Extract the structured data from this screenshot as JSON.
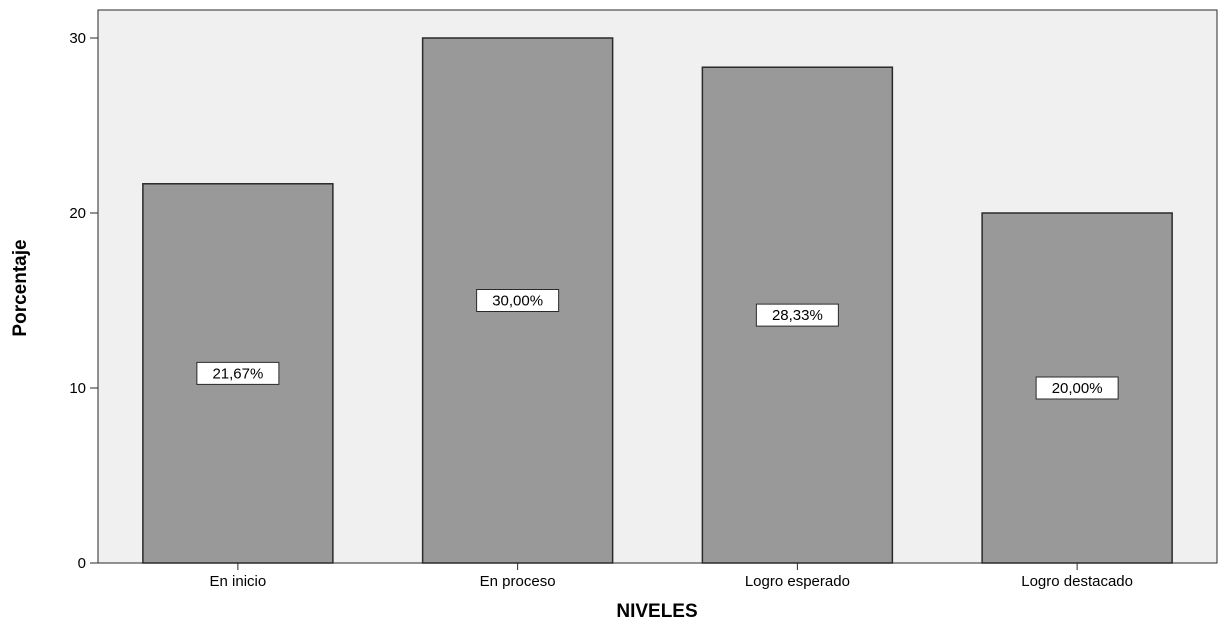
{
  "chart_data": {
    "type": "bar",
    "categories": [
      "En inicio",
      "En proceso",
      "Logro esperado",
      "Logro destacado"
    ],
    "values": [
      21.67,
      30.0,
      28.33,
      20.0
    ],
    "data_labels": [
      "21,67%",
      "30,00%",
      "28,33%",
      "20,00%"
    ],
    "xlabel": "NIVELES",
    "ylabel": "Porcentaje",
    "ylim": [
      0,
      30
    ],
    "yticks": [
      0,
      10,
      20,
      30
    ],
    "ytick_labels": [
      "0",
      "10",
      "20",
      "30"
    ],
    "grid": false,
    "colors": {
      "plot_background": "#f0f0f0",
      "bar_fill": "#999999",
      "bar_stroke": "#2a2a2a",
      "label_box_fill": "#ffffff"
    }
  }
}
